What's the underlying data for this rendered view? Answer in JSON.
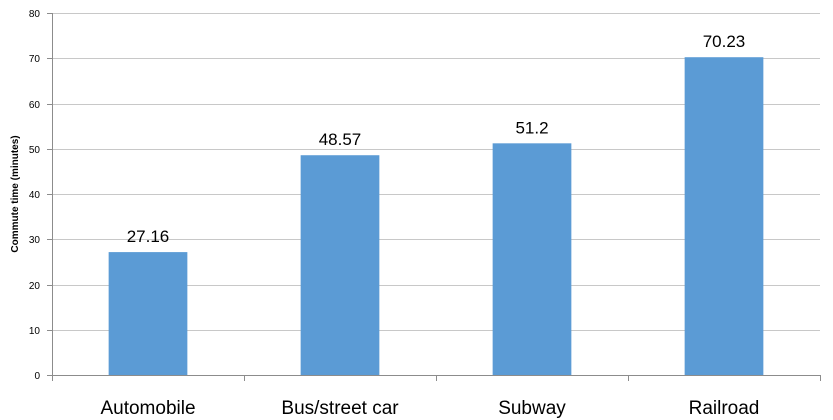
{
  "chart_data": {
    "type": "bar",
    "title": "",
    "xlabel": "",
    "ylabel": "Commute time (minutes)",
    "categories": [
      "Automobile",
      "Bus/street car",
      "Subway",
      "Railroad"
    ],
    "values": [
      27.16,
      48.57,
      51.2,
      70.23
    ],
    "data_labels": [
      "27.16",
      "48.57",
      "51.2",
      "70.23"
    ],
    "ylim": [
      0,
      80
    ],
    "yticks": [
      "0",
      "10",
      "20",
      "30",
      "40",
      "50",
      "60",
      "70",
      "80"
    ],
    "grid": true,
    "legend": "none",
    "bar_color": "#5b9bd5"
  }
}
